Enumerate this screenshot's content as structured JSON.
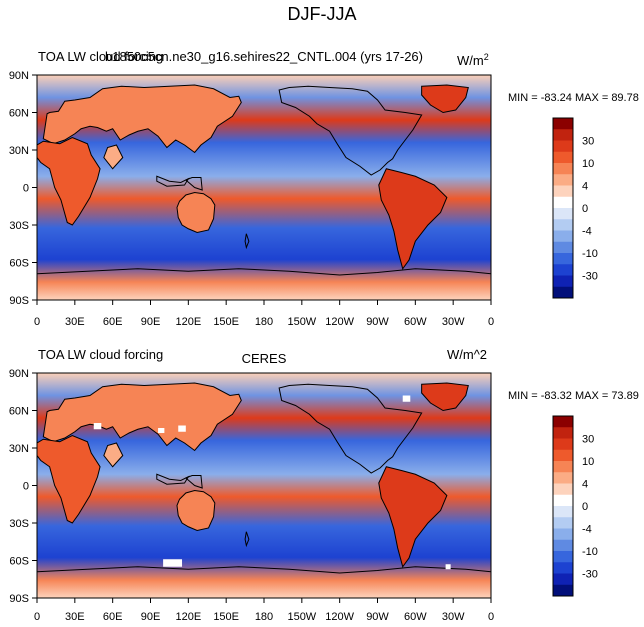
{
  "figure": {
    "title": "DJF-JJA"
  },
  "colorbar": {
    "colors": [
      "#8b0000",
      "#c1230f",
      "#dd3a1a",
      "#ee5a2c",
      "#f68455",
      "#fbac85",
      "#fdd3bd",
      "#ffffff",
      "#dbe6f8",
      "#b3ccf2",
      "#8aaeeb",
      "#5f8ae2",
      "#3766dd",
      "#1d42d1",
      "#0f22b4",
      "#020f7a"
    ],
    "labels": [
      "30",
      "10",
      "4",
      "0",
      "-4",
      "-10",
      "-30"
    ]
  },
  "chart_data": [
    {
      "type": "heatmap",
      "panel": "model",
      "title_left": "TOA LW cloud forcing",
      "title_center": "b1850c5cn.ne30_g16.sehires22_CNTL.004 (yrs 17-26)",
      "units": "W/m",
      "units_sup": "2",
      "stats": "MIN = -83.24 MAX =  89.78",
      "min": -83.24,
      "max": 89.78,
      "xlim": [
        0,
        360
      ],
      "ylim": [
        -90,
        90
      ],
      "x_ticks": [
        "0",
        "30E",
        "60E",
        "90E",
        "120E",
        "150E",
        "180",
        "150W",
        "120W",
        "90W",
        "60W",
        "30W",
        "0"
      ],
      "y_ticks": [
        "90N",
        "60N",
        "30N",
        "0",
        "30S",
        "60S",
        "90S"
      ]
    },
    {
      "type": "heatmap",
      "panel": "obs",
      "title_left": "TOA LW cloud forcing",
      "title_center": "CERES",
      "units": "W/m^2",
      "stats": "MIN = -83.32 MAX =  73.89",
      "min": -83.32,
      "max": 73.89,
      "xlim": [
        0,
        360
      ],
      "ylim": [
        -90,
        90
      ],
      "x_ticks": [
        "0",
        "30E",
        "60E",
        "90E",
        "120E",
        "150E",
        "180",
        "150W",
        "120W",
        "90W",
        "60W",
        "30W",
        "0"
      ],
      "y_ticks": [
        "90N",
        "60N",
        "30N",
        "0",
        "30S",
        "60S",
        "90S"
      ]
    }
  ]
}
